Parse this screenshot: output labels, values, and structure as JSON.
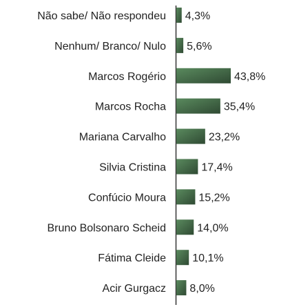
{
  "chart_data": {
    "type": "bar",
    "orientation": "horizontal",
    "categories": [
      "Não sabe/ Não respondeu",
      "Nenhum/ Branco/ Nulo",
      "Marcos Rogério",
      "Marcos Rocha",
      "Mariana Carvalho",
      "Silvia Cristina",
      "Confúcio Moura",
      "Bruno Bolsonaro Scheid",
      "Fátima Cleide",
      "Acir Gurgacz"
    ],
    "values": [
      4.3,
      5.6,
      43.8,
      35.4,
      23.2,
      17.4,
      15.2,
      14.0,
      10.1,
      8.0
    ],
    "value_labels": [
      "4,3%",
      "5,6%",
      "43,8%",
      "35,4%",
      "23,2%",
      "17,4%",
      "15,2%",
      "14,0%",
      "10,1%",
      "8,0%"
    ],
    "title": "",
    "xlabel": "",
    "ylabel": "",
    "xlim": [
      0,
      43.8
    ],
    "grid": false,
    "legend": "none",
    "colors": {
      "bar_dark": "#2f4a33",
      "bar_light": "#5a8a5e",
      "axis": "#333333",
      "text": "#222222"
    }
  }
}
